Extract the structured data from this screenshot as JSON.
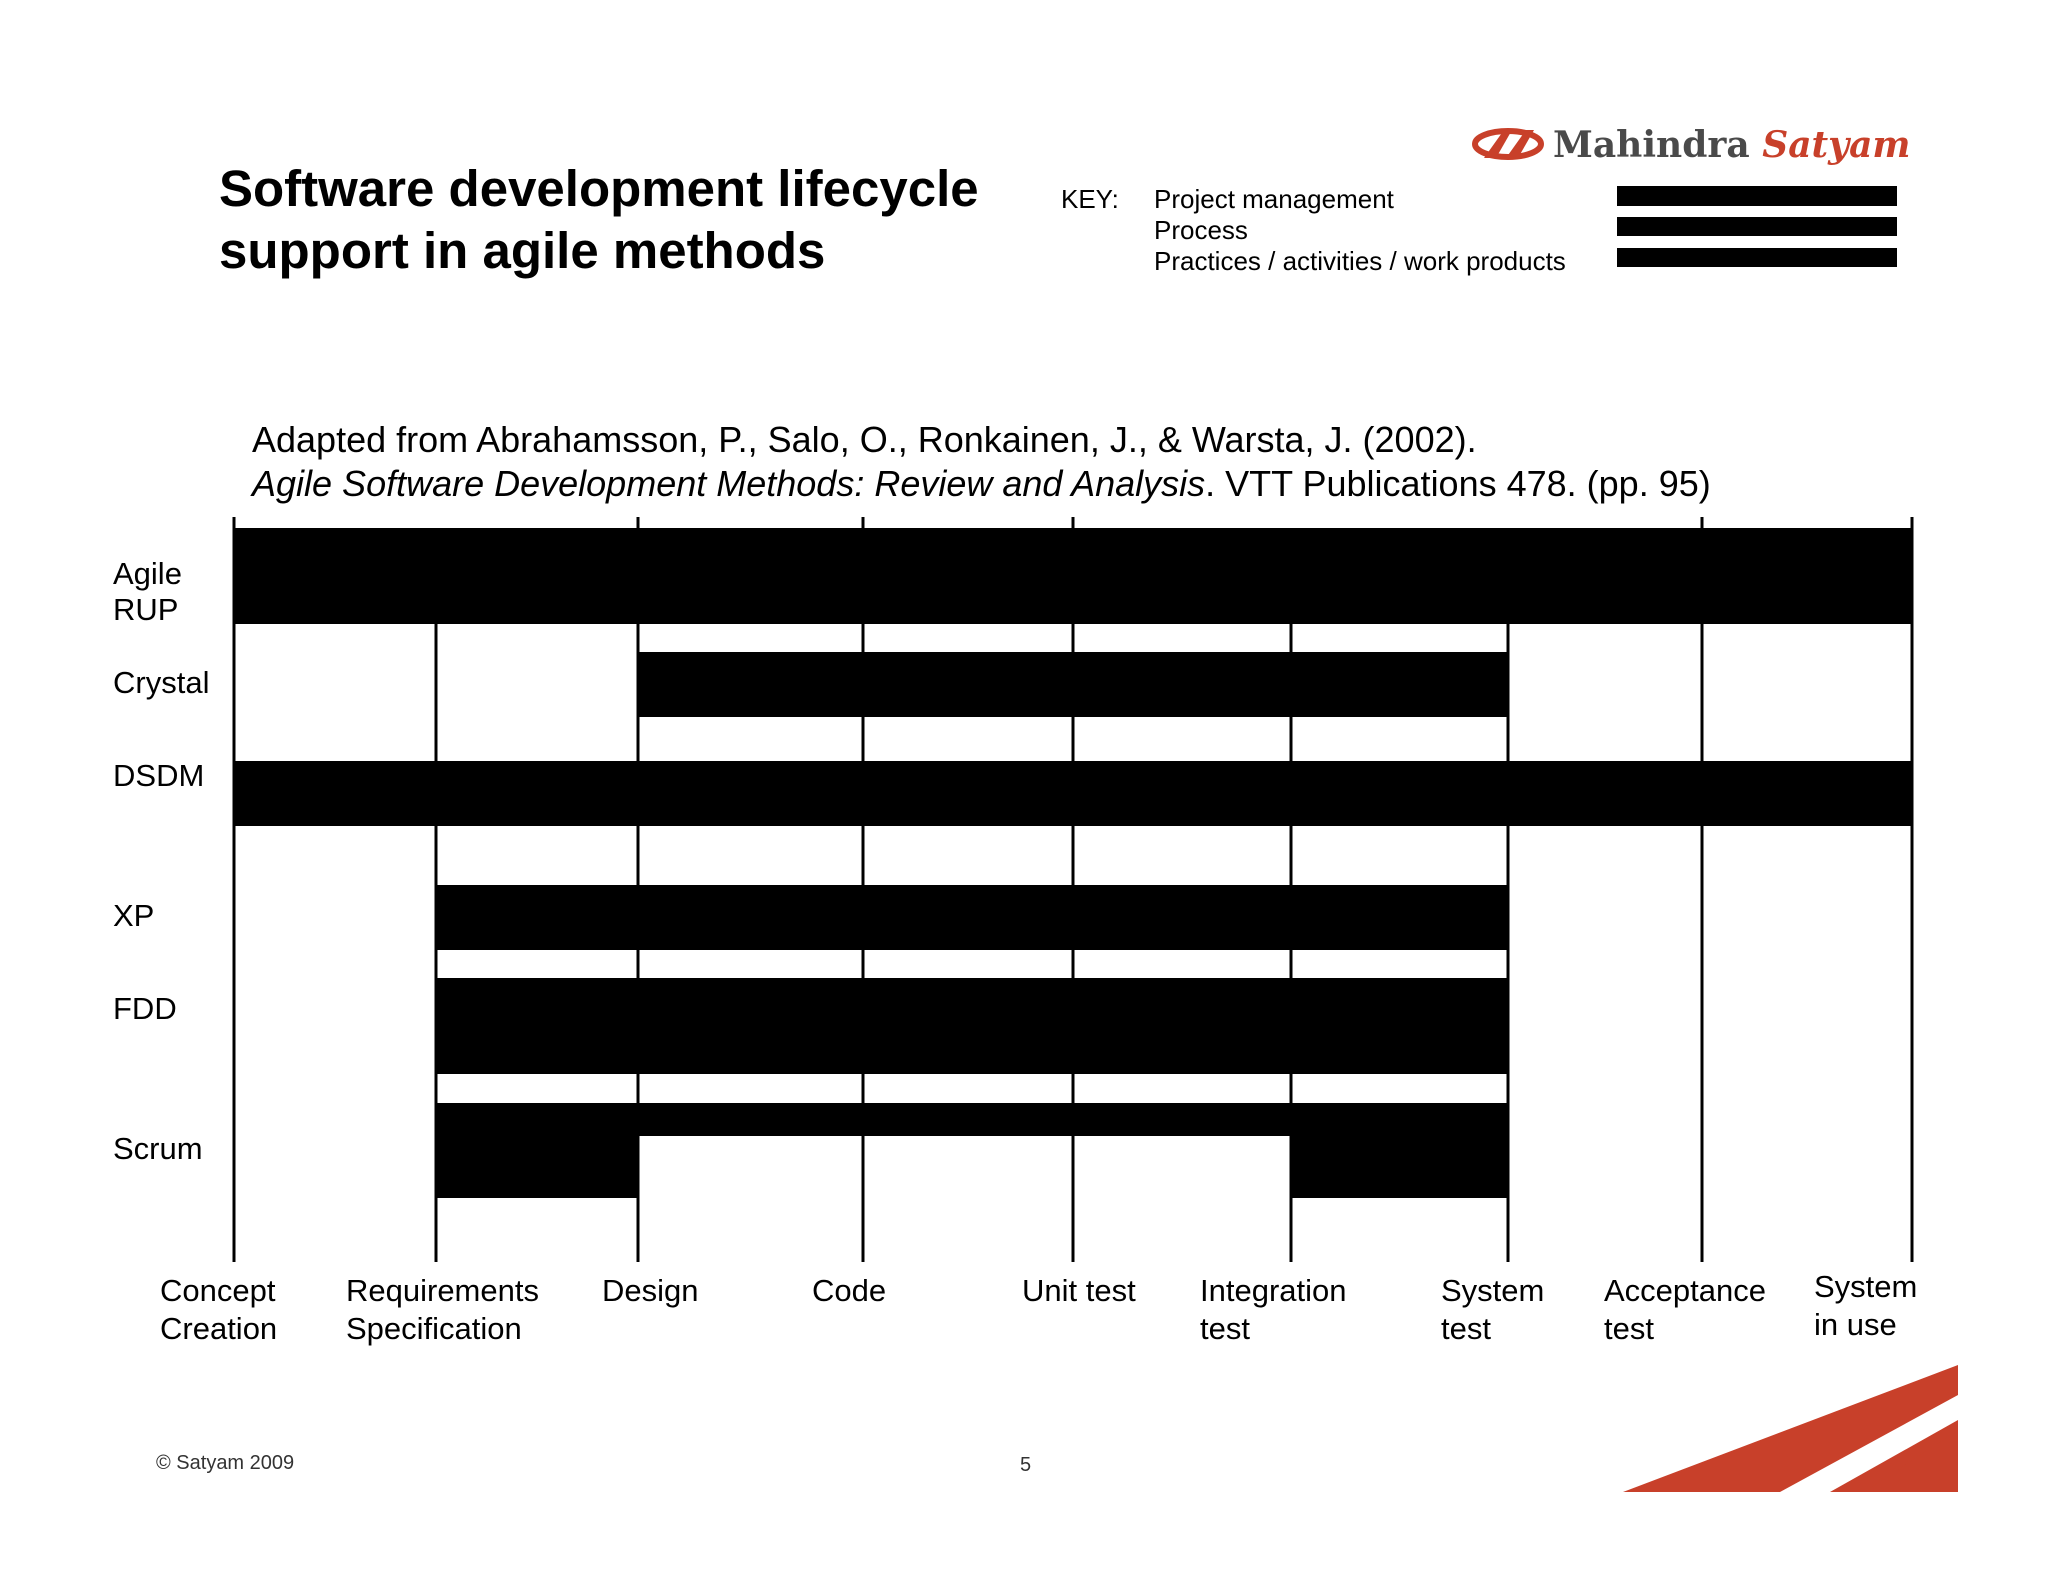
{
  "title": {
    "line1": "Software development lifecycle",
    "line2": "support in agile methods"
  },
  "logo": {
    "mahindra": "Mahindra",
    "satyam": "Satyam"
  },
  "key": {
    "label": "KEY:",
    "items": [
      "Project management",
      "Process",
      "Practices / activities / work products"
    ]
  },
  "citation": {
    "line1": "Adapted from Abrahamsson, P., Salo, O., Ronkainen, J., & Warsta, J. (2002).",
    "line2_italic": "Agile Software Development Methods: Review and Analysis",
    "line2_rest": ". VTT Publications 478. (pp. 95)"
  },
  "rows": [
    {
      "label": "Agile\nRUP",
      "label_lines": [
        "Agile",
        "RUP"
      ]
    },
    {
      "label": "Crystal",
      "label_lines": [
        "Crystal"
      ]
    },
    {
      "label": "DSDM",
      "label_lines": [
        "DSDM"
      ]
    },
    {
      "label": "XP",
      "label_lines": [
        "XP"
      ]
    },
    {
      "label": "FDD",
      "label_lines": [
        "FDD"
      ]
    },
    {
      "label": "Scrum",
      "label_lines": [
        "Scrum"
      ]
    }
  ],
  "phases": [
    {
      "lines": [
        "Concept",
        "Creation"
      ]
    },
    {
      "lines": [
        "Requirements",
        "Specification"
      ]
    },
    {
      "lines": [
        "Design"
      ]
    },
    {
      "lines": [
        "Code"
      ]
    },
    {
      "lines": [
        "Unit test"
      ]
    },
    {
      "lines": [
        "Integration",
        "test"
      ]
    },
    {
      "lines": [
        "System",
        "test"
      ]
    },
    {
      "lines": [
        "Acceptance",
        "test"
      ]
    },
    {
      "lines": [
        "System",
        "in use"
      ]
    }
  ],
  "footer": {
    "copyright": "© Satyam 2009",
    "page": "5"
  },
  "colors": {
    "accent": "#c8402a",
    "bars": "#000000",
    "background": "#ffffff"
  }
}
